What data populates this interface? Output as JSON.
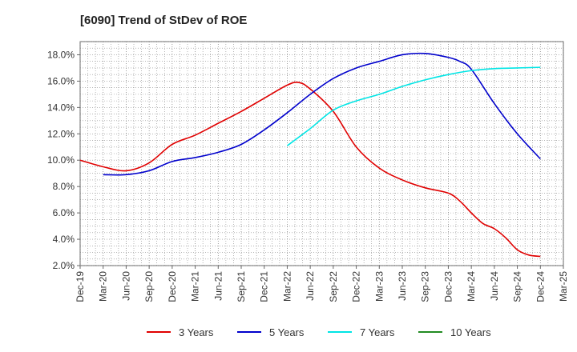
{
  "chart_data": {
    "type": "line",
    "title": "[6090]  Trend of StDev of ROE",
    "xlabel": "",
    "ylabel": "",
    "x_tick_labels": [
      "Dec-19",
      "Mar-20",
      "Jun-20",
      "Sep-20",
      "Dec-20",
      "Mar-21",
      "Jun-21",
      "Sep-21",
      "Dec-21",
      "Mar-22",
      "Jun-22",
      "Sep-22",
      "Dec-22",
      "Mar-23",
      "Jun-23",
      "Sep-23",
      "Dec-23",
      "Mar-24",
      "Jun-24",
      "Sep-24",
      "Dec-24",
      "Mar-25"
    ],
    "y_tick_labels": [
      "2.0%",
      "4.0%",
      "6.0%",
      "8.0%",
      "10.0%",
      "12.0%",
      "14.0%",
      "16.0%",
      "18.0%"
    ],
    "ylim": [
      2.0,
      19.0
    ],
    "grid": true,
    "legend_position": "bottom",
    "series": [
      {
        "name": "3 Years",
        "color": "#e00000",
        "points": [
          [
            0,
            10.0
          ],
          [
            1,
            9.5
          ],
          [
            2,
            9.2
          ],
          [
            3,
            9.8
          ],
          [
            4,
            11.2
          ],
          [
            5,
            11.9
          ],
          [
            6,
            12.8
          ],
          [
            7,
            13.7
          ],
          [
            8,
            14.7
          ],
          [
            9,
            15.7
          ],
          [
            9.5,
            15.9
          ],
          [
            10,
            15.4
          ],
          [
            11,
            13.7
          ],
          [
            12,
            11.0
          ],
          [
            13,
            9.4
          ],
          [
            14,
            8.5
          ],
          [
            15,
            7.9
          ],
          [
            16,
            7.5
          ],
          [
            16.5,
            6.9
          ],
          [
            17,
            6.0
          ],
          [
            17.5,
            5.2
          ],
          [
            18,
            4.8
          ],
          [
            18.5,
            4.1
          ],
          [
            19,
            3.2
          ],
          [
            19.5,
            2.8
          ],
          [
            20,
            2.7
          ]
        ]
      },
      {
        "name": "5 Years",
        "color": "#0000cc",
        "points": [
          [
            1,
            8.9
          ],
          [
            2,
            8.9
          ],
          [
            3,
            9.2
          ],
          [
            4,
            9.9
          ],
          [
            5,
            10.2
          ],
          [
            6,
            10.6
          ],
          [
            7,
            11.2
          ],
          [
            8,
            12.3
          ],
          [
            9,
            13.6
          ],
          [
            10,
            15.0
          ],
          [
            11,
            16.2
          ],
          [
            12,
            17.0
          ],
          [
            13,
            17.5
          ],
          [
            14,
            18.0
          ],
          [
            15,
            18.1
          ],
          [
            16,
            17.8
          ],
          [
            16.5,
            17.5
          ],
          [
            17,
            16.9
          ],
          [
            18,
            14.3
          ],
          [
            19,
            12.0
          ],
          [
            20,
            10.1
          ]
        ]
      },
      {
        "name": "7 Years",
        "color": "#00e5e5",
        "points": [
          [
            9,
            11.1
          ],
          [
            10,
            12.4
          ],
          [
            11,
            13.8
          ],
          [
            12,
            14.5
          ],
          [
            13,
            15.0
          ],
          [
            14,
            15.6
          ],
          [
            15,
            16.1
          ],
          [
            16,
            16.5
          ],
          [
            17,
            16.8
          ],
          [
            18,
            16.95
          ],
          [
            19,
            17.0
          ],
          [
            20,
            17.05
          ]
        ]
      },
      {
        "name": "10 Years",
        "color": "#228b22",
        "points": []
      }
    ]
  }
}
